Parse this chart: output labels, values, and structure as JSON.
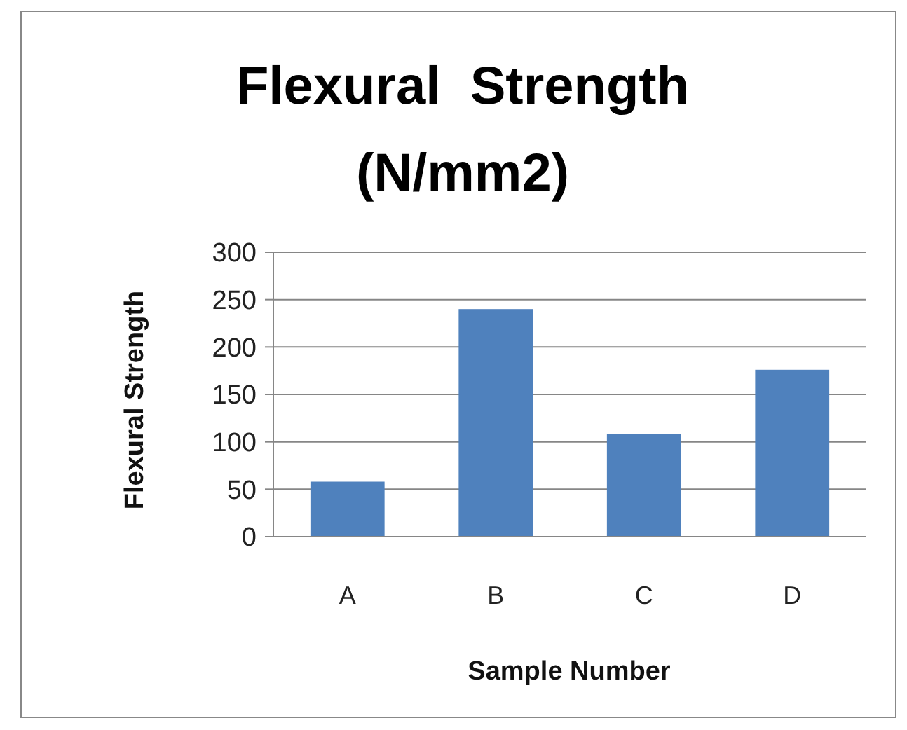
{
  "chart_data": {
    "type": "bar",
    "title": "Flexural  Strength (N/mm2)",
    "xlabel": "Sample Number",
    "ylabel": "Flexural Strength",
    "categories": [
      "A",
      "B",
      "C",
      "D"
    ],
    "values": [
      58,
      240,
      108,
      176
    ],
    "color": "#4f81bd",
    "ylim": [
      0,
      300
    ],
    "yticks": [
      0,
      50,
      100,
      150,
      200,
      250,
      300
    ],
    "grid": "y"
  }
}
